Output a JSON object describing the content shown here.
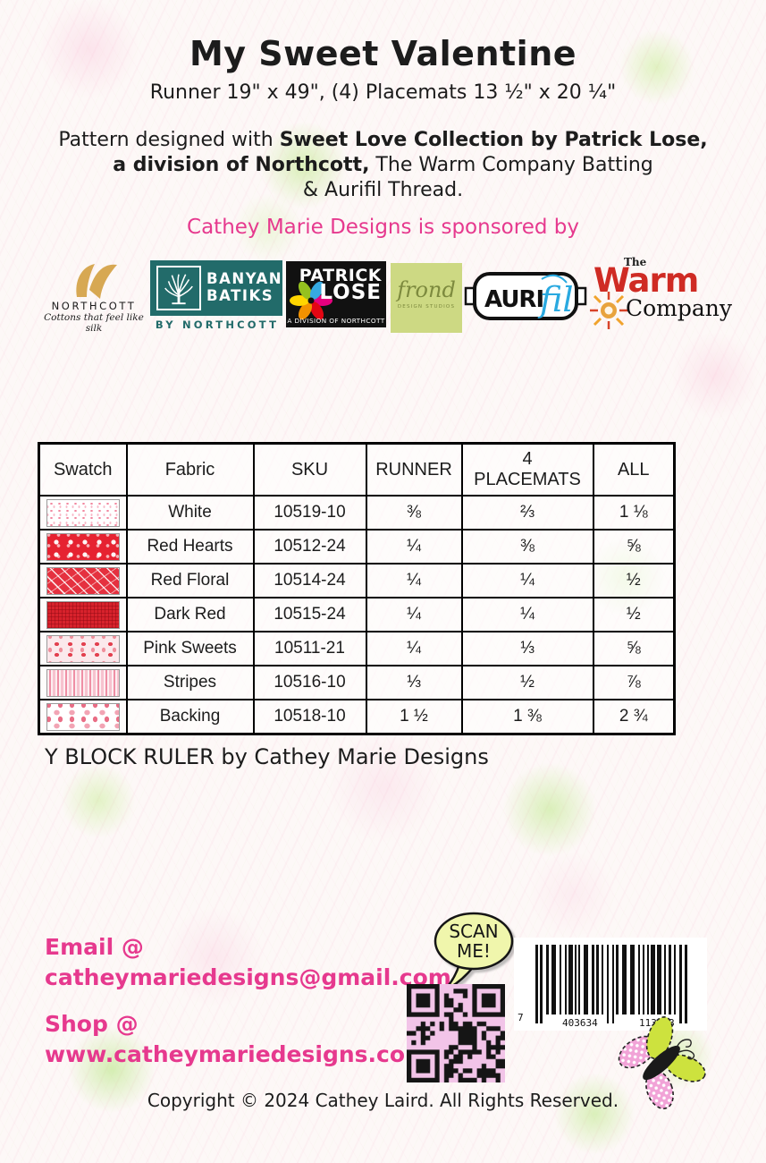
{
  "header": {
    "title": "My Sweet Valentine",
    "subtitle": "Runner 19\" x 49\", (4) Placemats 13 ½\" x 20 ¼\"",
    "desc_l1a": "Pattern designed with ",
    "desc_l1b": "Sweet Love Collection by Patrick Lose,",
    "desc_l2a": "a division of Northcott,",
    "desc_l2b": " The Warm Company Batting",
    "desc_l3": "& Aurifil Thread.",
    "sponsor_line": "Cathey Marie Designs is sponsored by"
  },
  "logos": {
    "northcott": {
      "name": "NORTHCOTT",
      "tagline": "Cottons that feel like silk"
    },
    "banyan": {
      "line1": "BANYAN",
      "line2": "BATIKS",
      "sub": "BY NORTHCOTT"
    },
    "patrick_lose": {
      "line1": "PATRICK",
      "line2": "LOSE",
      "sub": "A DIVISION OF NORTHCOTT"
    },
    "frond": {
      "name": "frond",
      "sub": "DESIGN STUDIOS"
    },
    "aurifil": {
      "part1": "AURI",
      "part2": "fil"
    },
    "warm": {
      "the": "The",
      "warm": "Warm",
      "company": "Company"
    }
  },
  "table": {
    "headers": [
      "Swatch",
      "Fabric",
      "SKU",
      "RUNNER",
      "4\nPLACEMATS",
      "ALL"
    ],
    "rows": [
      {
        "swatch": "white-pink-dots",
        "fabric": "White",
        "sku": "10519-10",
        "runner": "⅜",
        "placemats": "⅔",
        "all": "1 ⅛"
      },
      {
        "swatch": "red-hearts",
        "fabric": "Red Hearts",
        "sku": "10512-24",
        "runner": "¼",
        "placemats": "⅜",
        "all": "⅝"
      },
      {
        "swatch": "red-floral",
        "fabric": "Red Floral",
        "sku": "10514-24",
        "runner": "¼",
        "placemats": "¼",
        "all": "½"
      },
      {
        "swatch": "dark-red",
        "fabric": "Dark Red",
        "sku": "10515-24",
        "runner": "¼",
        "placemats": "¼",
        "all": "½"
      },
      {
        "swatch": "pink-sweets",
        "fabric": "Pink Sweets",
        "sku": "10511-21",
        "runner": "¼",
        "placemats": "⅓",
        "all": "⅝"
      },
      {
        "swatch": "stripes",
        "fabric": "Stripes",
        "sku": "10516-10",
        "runner": "⅓",
        "placemats": "½",
        "all": "⅞"
      },
      {
        "swatch": "backing",
        "fabric": "Backing",
        "sku": "10518-10",
        "runner": "1 ½",
        "placemats": "1 ⅜",
        "all": "2 ¾"
      }
    ]
  },
  "ruler_note": "Y BLOCK RULER by Cathey Marie Designs",
  "contact": {
    "email_label": "Email @",
    "email": "catheymariedesigns@gmail.com",
    "shop_label": "Shop @",
    "shop_url": "www.catheymariedesigns.com"
  },
  "scan_bubble": {
    "line1": "SCAN",
    "line2": "ME!"
  },
  "barcode": {
    "left_digit": "7",
    "group1": "403634",
    "group2": "113093"
  },
  "footer": {
    "copyright": "Copyright © 2024 Cathey Laird. All Rights Reserved."
  },
  "colors": {
    "accent_pink": "#e6398e",
    "banyan_teal": "#226b6a",
    "northcott_gold": "#d7a853",
    "warm_red": "#cf2b24",
    "aurifil_blue": "#2aa9e0",
    "bubble_yellow": "#f0f6ac",
    "qr_pink": "#f2c4e8",
    "frond_green": "#cdd983"
  }
}
